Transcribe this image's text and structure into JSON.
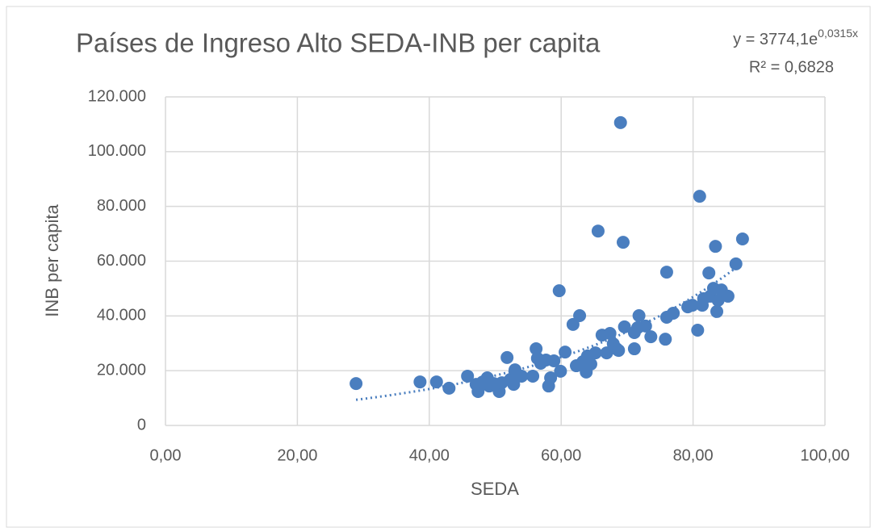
{
  "chart_data": {
    "type": "scatter",
    "title": "Países de Ingreso Alto SEDA-INB per capita",
    "x_label": "SEDA",
    "y_label": "INB per capita",
    "equation": "y = 3774,1e",
    "equation_exponent": "0,0315x",
    "r_squared": "R² = 0,6828",
    "trendline": {
      "type": "exponential",
      "a": 3774.1,
      "b": 0.0315
    },
    "color": "#4a7ebf",
    "grid": true,
    "xlim": [
      0,
      100
    ],
    "ylim": [
      0,
      120000
    ],
    "xticks": [
      {
        "value": 0,
        "label": "0,00"
      },
      {
        "value": 20,
        "label": "20,00"
      },
      {
        "value": 40,
        "label": "40,00"
      },
      {
        "value": 60,
        "label": "60,00"
      },
      {
        "value": 80,
        "label": "80,00"
      },
      {
        "value": 100,
        "label": "100,00"
      }
    ],
    "yticks": [
      0,
      {
        "value": 20000,
        "label": "20.000"
      },
      {
        "value": 40000,
        "label": "40.000"
      },
      {
        "value": 60000,
        "label": "60.000"
      },
      {
        "value": 80000,
        "label": "80.000"
      },
      {
        "value": 100000,
        "label": "100.000"
      },
      {
        "value": 120000,
        "label": "120.000"
      }
    ],
    "x": [
      28.9,
      38.6,
      41.1,
      43.0,
      45.8,
      47.1,
      47.4,
      48.1,
      48.8,
      49.1,
      49.8,
      50.6,
      51.0,
      51.8,
      52.3,
      52.8,
      53.0,
      54.0,
      55.7,
      56.2,
      56.4,
      56.9,
      57.7,
      58.1,
      58.4,
      58.9,
      59.7,
      59.9,
      60.6,
      61.8,
      62.8,
      62.3,
      63.3,
      63.8,
      64.0,
      64.5,
      65.2,
      65.6,
      66.2,
      66.9,
      67.4,
      67.9,
      68.4,
      68.7,
      69.0,
      69.4,
      69.6,
      71.1,
      71.1,
      71.6,
      71.8,
      72.8,
      73.6,
      75.8,
      76.0,
      76.0,
      77.0,
      79.2,
      79.9,
      80.7,
      81.0,
      81.4,
      81.6,
      82.4,
      82.6,
      83.1,
      83.4,
      83.6,
      83.8,
      84.3,
      85.3,
      86.5,
      87.5
    ],
    "y": [
      15300,
      15900,
      15900,
      13600,
      18000,
      15000,
      12400,
      15900,
      17400,
      14400,
      15300,
      12400,
      15600,
      24800,
      16800,
      15000,
      20300,
      18000,
      18000,
      28000,
      24500,
      22700,
      23900,
      14400,
      17400,
      23600,
      49200,
      19800,
      26800,
      36900,
      40100,
      21800,
      23300,
      19500,
      25400,
      22400,
      26500,
      71000,
      33000,
      26500,
      33600,
      29800,
      28000,
      27400,
      110600,
      66900,
      36000,
      33900,
      28000,
      35700,
      40100,
      36300,
      32400,
      31500,
      56000,
      39500,
      41000,
      43300,
      43900,
      34800,
      83700,
      43900,
      46300,
      55700,
      47200,
      50100,
      65400,
      41600,
      45700,
      49500,
      47200,
      59000,
      68100
    ]
  }
}
